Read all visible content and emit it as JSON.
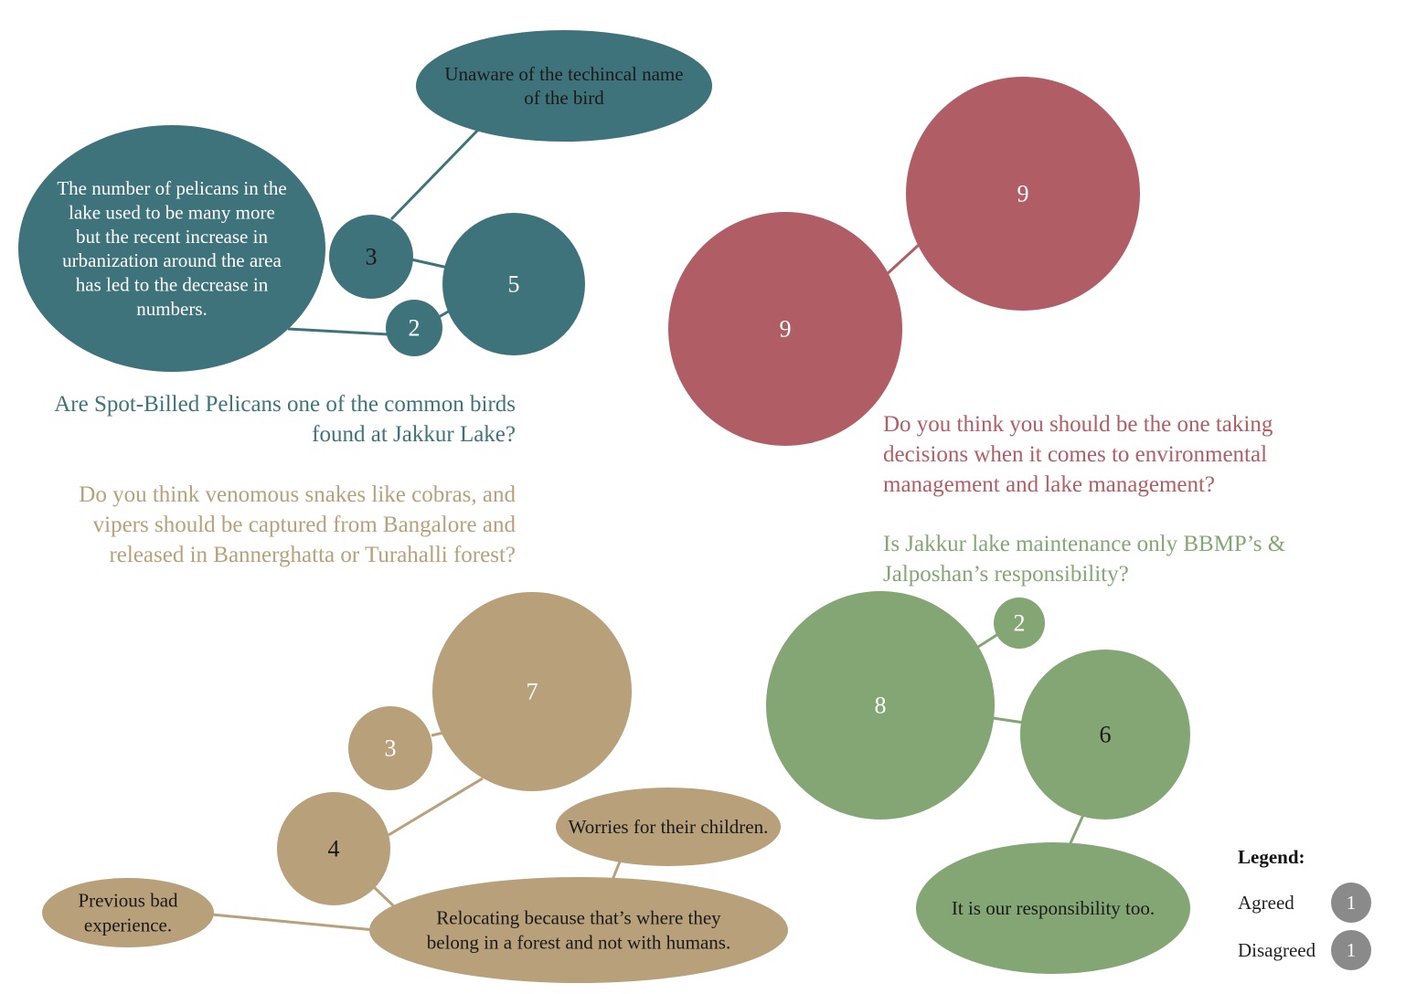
{
  "colors": {
    "teal": "#3e737c",
    "red": "#b05d65",
    "tan": "#b8a07a",
    "green": "#84a674",
    "legend_dot": "#8a8a8a"
  },
  "questions": {
    "pelican": [
      "Are Spot-Billed Pelicans one of the common birds",
      "found at Jakkur Lake?"
    ],
    "snakes": [
      "Do you think venomous snakes like cobras, and",
      "vipers should be captured from Bangalore and",
      "released in Bannerghatta or Turahalli forest?"
    ],
    "decide": [
      "Do you think you should be the one taking",
      "decisions when it comes to environmental",
      "management and lake management?"
    ],
    "maint": [
      "Is Jakkur lake maintenance only BBMP’s &",
      "Jalposhan’s responsibility?"
    ]
  },
  "groups": {
    "pelican": {
      "color": "teal",
      "counts": [
        "3",
        "5",
        "2"
      ],
      "comments": [
        [
          "Unaware of the techincal name",
          "of the bird"
        ],
        [
          "The number of pelicans in the",
          "lake used to be many more",
          "but the recent increase in",
          "urbanization around the area",
          "has led to the decrease in",
          "numbers."
        ]
      ]
    },
    "decide": {
      "color": "red",
      "counts": [
        "9",
        "9"
      ]
    },
    "snakes": {
      "color": "tan",
      "counts": [
        "7",
        "3",
        "4"
      ],
      "comments": [
        [
          "Worries for their children."
        ],
        [
          "Previous bad",
          "experience."
        ],
        [
          "Relocating because that’s where they",
          "belong in a forest and not with humans."
        ]
      ]
    },
    "maint": {
      "color": "green",
      "counts": [
        "8",
        "2",
        "6"
      ],
      "comments": [
        [
          "It is our responsibility too."
        ]
      ]
    }
  },
  "legend": {
    "title": "Legend:",
    "items": [
      {
        "label": "Agreed",
        "value": "1"
      },
      {
        "label": "Disagreed",
        "value": "1"
      }
    ]
  }
}
